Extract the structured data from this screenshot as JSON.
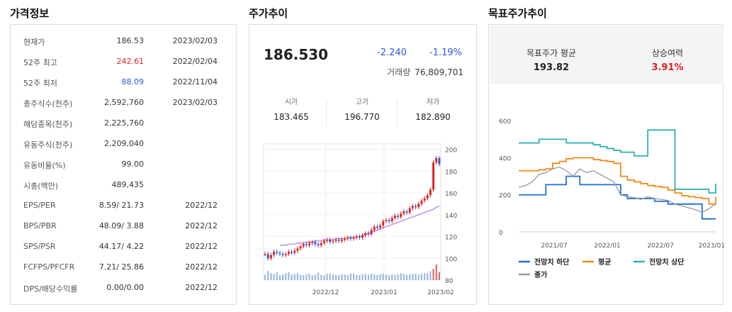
{
  "sections": {
    "info_title": "가격정보",
    "price_title": "주가추이",
    "target_title": "목표주가추이"
  },
  "info_rows": [
    {
      "label": "현재가",
      "value": "186.53",
      "date": "2023/02/03",
      "value_color": "normal"
    },
    {
      "label": "52주 최고",
      "value": "242.61",
      "date": "2022/02/04",
      "value_color": "red"
    },
    {
      "label": "52주 최저",
      "value": "88.09",
      "date": "2022/11/04",
      "value_color": "blue"
    },
    {
      "label": "총주식수(천주)",
      "value": "2,592,760",
      "date": "2023/02/03",
      "value_color": "normal"
    },
    {
      "label": "해당종목(천주)",
      "value": "2,225,760",
      "date": "",
      "value_color": "normal"
    },
    {
      "label": "유동주식(천주)",
      "value": "2,209,040",
      "date": "",
      "value_color": "normal"
    },
    {
      "label": "유동비율(%)",
      "value": "99.00",
      "date": "",
      "value_color": "normal"
    },
    {
      "label": "시총(백만)",
      "value": "489,435",
      "date": "",
      "value_color": "normal"
    },
    {
      "label": "EPS/PER",
      "value": "8.59/ 21.73",
      "date": "2022/12",
      "value_color": "normal"
    },
    {
      "label": "BPS/PBR",
      "value": "48.09/ 3.88",
      "date": "2022/12",
      "value_color": "normal"
    },
    {
      "label": "SPS/PSR",
      "value": "44.17/ 4.22",
      "date": "2022/12",
      "value_color": "normal"
    },
    {
      "label": "FCFPS/PFCFR",
      "value": "7.21/ 25.86",
      "date": "2022/12",
      "value_color": "normal"
    },
    {
      "label": "DPS/배당수익률",
      "value": "0.00/0.00",
      "date": "2022/12",
      "value_color": "normal"
    }
  ],
  "quote": {
    "price": "186.530",
    "change": "-2.240",
    "change_pct": "-1.19%",
    "volume_label": "거래량",
    "volume": "76,809,701",
    "open_label": "시가",
    "open": "183.465",
    "high_label": "고가",
    "high": "196.770",
    "low_label": "저가",
    "low": "182.890"
  },
  "target": {
    "avg_label": "목표주가 평균",
    "avg": "193.82",
    "upside_label": "상승여력",
    "upside": "3.91%"
  },
  "colors": {
    "up": "#e02020",
    "down": "#2a5bd7",
    "target_low": "#1f6fd1",
    "target_avg": "#f08a1c",
    "target_high": "#2fb0b0",
    "close": "#9a9a9a",
    "ma": "#b07ae0",
    "volume": "#9db8e0"
  },
  "chart_data": [
    {
      "type": "candlestick",
      "x_tick_labels": [
        "2022/12",
        "2023/01",
        "2023/02"
      ],
      "y_tick_labels": [
        "80",
        "100",
        "120",
        "140",
        "160",
        "180",
        "200"
      ],
      "ylim": [
        80,
        205
      ],
      "close_series": [
        104,
        100,
        103,
        106,
        105,
        104,
        103,
        104,
        106,
        105,
        107,
        109,
        111,
        113,
        112,
        114,
        115,
        113,
        112,
        114,
        116,
        117,
        115,
        116,
        117,
        116,
        117,
        118,
        119,
        118,
        119,
        120,
        119,
        121,
        123,
        122,
        126,
        129,
        128,
        130,
        134,
        135,
        134,
        137,
        139,
        138,
        141,
        143,
        142,
        146,
        148,
        147,
        150,
        153,
        155,
        158,
        163,
        188,
        192,
        186.53
      ],
      "ma_series": [
        112,
        112,
        112,
        113,
        113,
        113,
        114,
        114,
        114,
        115,
        115,
        115,
        116,
        116,
        116,
        117,
        117,
        117,
        117,
        118,
        118,
        118,
        118,
        119,
        119,
        119,
        120,
        120,
        121,
        122,
        123,
        124,
        125,
        126,
        127,
        128,
        129,
        130,
        131,
        132,
        133,
        134,
        135,
        136,
        137,
        138,
        139,
        140,
        141,
        142,
        143,
        144,
        145,
        147,
        148
      ],
      "volume": [
        40,
        70,
        55,
        48,
        60,
        38,
        45,
        52,
        60,
        42,
        48,
        55,
        40,
        38,
        44,
        50,
        36,
        42,
        58,
        40,
        35,
        48,
        50,
        44,
        40,
        38,
        46,
        42,
        40,
        48,
        52,
        40,
        38,
        45,
        48,
        42,
        50,
        44,
        40,
        46,
        48,
        42,
        38,
        44,
        40,
        46,
        52,
        48,
        40,
        44,
        46,
        50,
        42,
        48,
        52,
        56,
        70,
        85,
        120,
        60
      ]
    },
    {
      "type": "line",
      "x_tick_labels": [
        "2021/07",
        "2022/01",
        "2022/07",
        "2023/01"
      ],
      "y_tick_labels": [
        "0",
        "200",
        "400",
        "600"
      ],
      "ylim": [
        0,
        620
      ],
      "legend": [
        "전망치 하단",
        "평균",
        "전망치 상단",
        "종가"
      ],
      "series": [
        {
          "name": "전망치 하단",
          "values": [
            200,
            200,
            200,
            200,
            255,
            255,
            255,
            300,
            300,
            255,
            255,
            255,
            255,
            255,
            255,
            200,
            180,
            180,
            180,
            180,
            165,
            165,
            150,
            150,
            150,
            150,
            150,
            70,
            70,
            70
          ]
        },
        {
          "name": "평균",
          "values": [
            330,
            330,
            330,
            335,
            340,
            370,
            380,
            395,
            400,
            400,
            400,
            390,
            385,
            380,
            370,
            300,
            280,
            270,
            260,
            250,
            245,
            240,
            225,
            210,
            195,
            190,
            185,
            180,
            150,
            190
          ]
        },
        {
          "name": "전망치 상단",
          "values": [
            480,
            480,
            480,
            500,
            500,
            500,
            500,
            480,
            480,
            480,
            480,
            470,
            460,
            450,
            440,
            430,
            430,
            410,
            410,
            550,
            550,
            550,
            550,
            230,
            230,
            230,
            230,
            230,
            210,
            260
          ]
        },
        {
          "name": "종가",
          "values": [
            240,
            250,
            270,
            310,
            320,
            340,
            350,
            330,
            300,
            340,
            320,
            330,
            310,
            290,
            270,
            200,
            190,
            185,
            175,
            190,
            180,
            175,
            170,
            150,
            140,
            130,
            120,
            105,
            125,
            150
          ]
        }
      ]
    }
  ]
}
